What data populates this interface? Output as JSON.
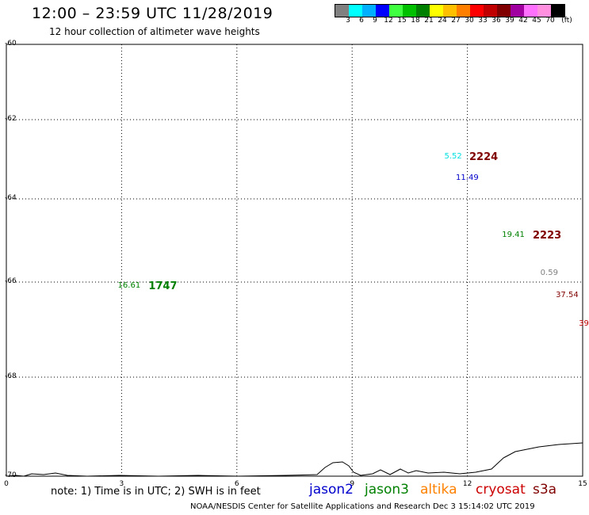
{
  "header": {
    "title": "12:00 – 23:59 UTC 11/28/2019",
    "subtitle": "12 hour collection of altimeter wave heights"
  },
  "legend": {
    "colors": [
      "#808080",
      "#00ffff",
      "#00b0ff",
      "#0000ff",
      "#40ff40",
      "#00c000",
      "#008000",
      "#ffff00",
      "#ffc000",
      "#ff8000",
      "#ff0000",
      "#c00000",
      "#800000",
      "#a000a0",
      "#ff70ff",
      "#ff90e0",
      "#000000"
    ],
    "labels": [
      "3",
      "6",
      "9",
      "12",
      "15",
      "18",
      "21",
      "24",
      "27",
      "30",
      "33",
      "36",
      "39",
      "42",
      "45",
      "70",
      "(ft)"
    ]
  },
  "axes": {
    "lat_ticks": [
      -60,
      -62,
      -64,
      -66,
      -68,
      -70
    ],
    "lon_ticks": [
      0,
      3,
      6,
      9,
      12,
      15
    ]
  },
  "observations": [
    {
      "text": "5.52",
      "color": "#00e0e0",
      "lat": -62.95,
      "lon": 11.4
    },
    {
      "text": "11.49",
      "color": "#0000cc",
      "lat": -63.5,
      "lon": 11.7
    },
    {
      "text": "19.41",
      "color": "#008000",
      "lat": -64.9,
      "lon": 12.9
    },
    {
      "text": "0.59",
      "color": "#808080",
      "lat": -65.8,
      "lon": 13.9
    },
    {
      "text": "37.54",
      "color": "#800000",
      "lat": -66.3,
      "lon": 14.3
    },
    {
      "text": "39",
      "color": "#c00000",
      "lat": -66.9,
      "lon": 14.9
    },
    {
      "text": "16.61",
      "color": "#008000",
      "lat": -66.1,
      "lon": 2.9
    }
  ],
  "passes": [
    {
      "text": "2224",
      "color": "#800000",
      "lat": -62.95,
      "lon": 12.05
    },
    {
      "text": "2223",
      "color": "#800000",
      "lat": -64.9,
      "lon": 13.7
    },
    {
      "text": "1747",
      "color": "#008000",
      "lat": -66.1,
      "lon": 3.7
    }
  ],
  "footer": {
    "note": "note: 1) Time is in UTC; 2) SWH is in feet",
    "satellites": [
      {
        "name": "jason2",
        "color": "#0000cc"
      },
      {
        "name": "jason3",
        "color": "#008000"
      },
      {
        "name": "altika",
        "color": "#ff8000"
      },
      {
        "name": "cryosat",
        "color": "#cc0000"
      },
      {
        "name": "s3a",
        "color": "#800000"
      }
    ],
    "credit": "NOAA/NESDIS Center for Satellite Applications and Research    Dec  3 15:14:02 UTC 2019"
  }
}
